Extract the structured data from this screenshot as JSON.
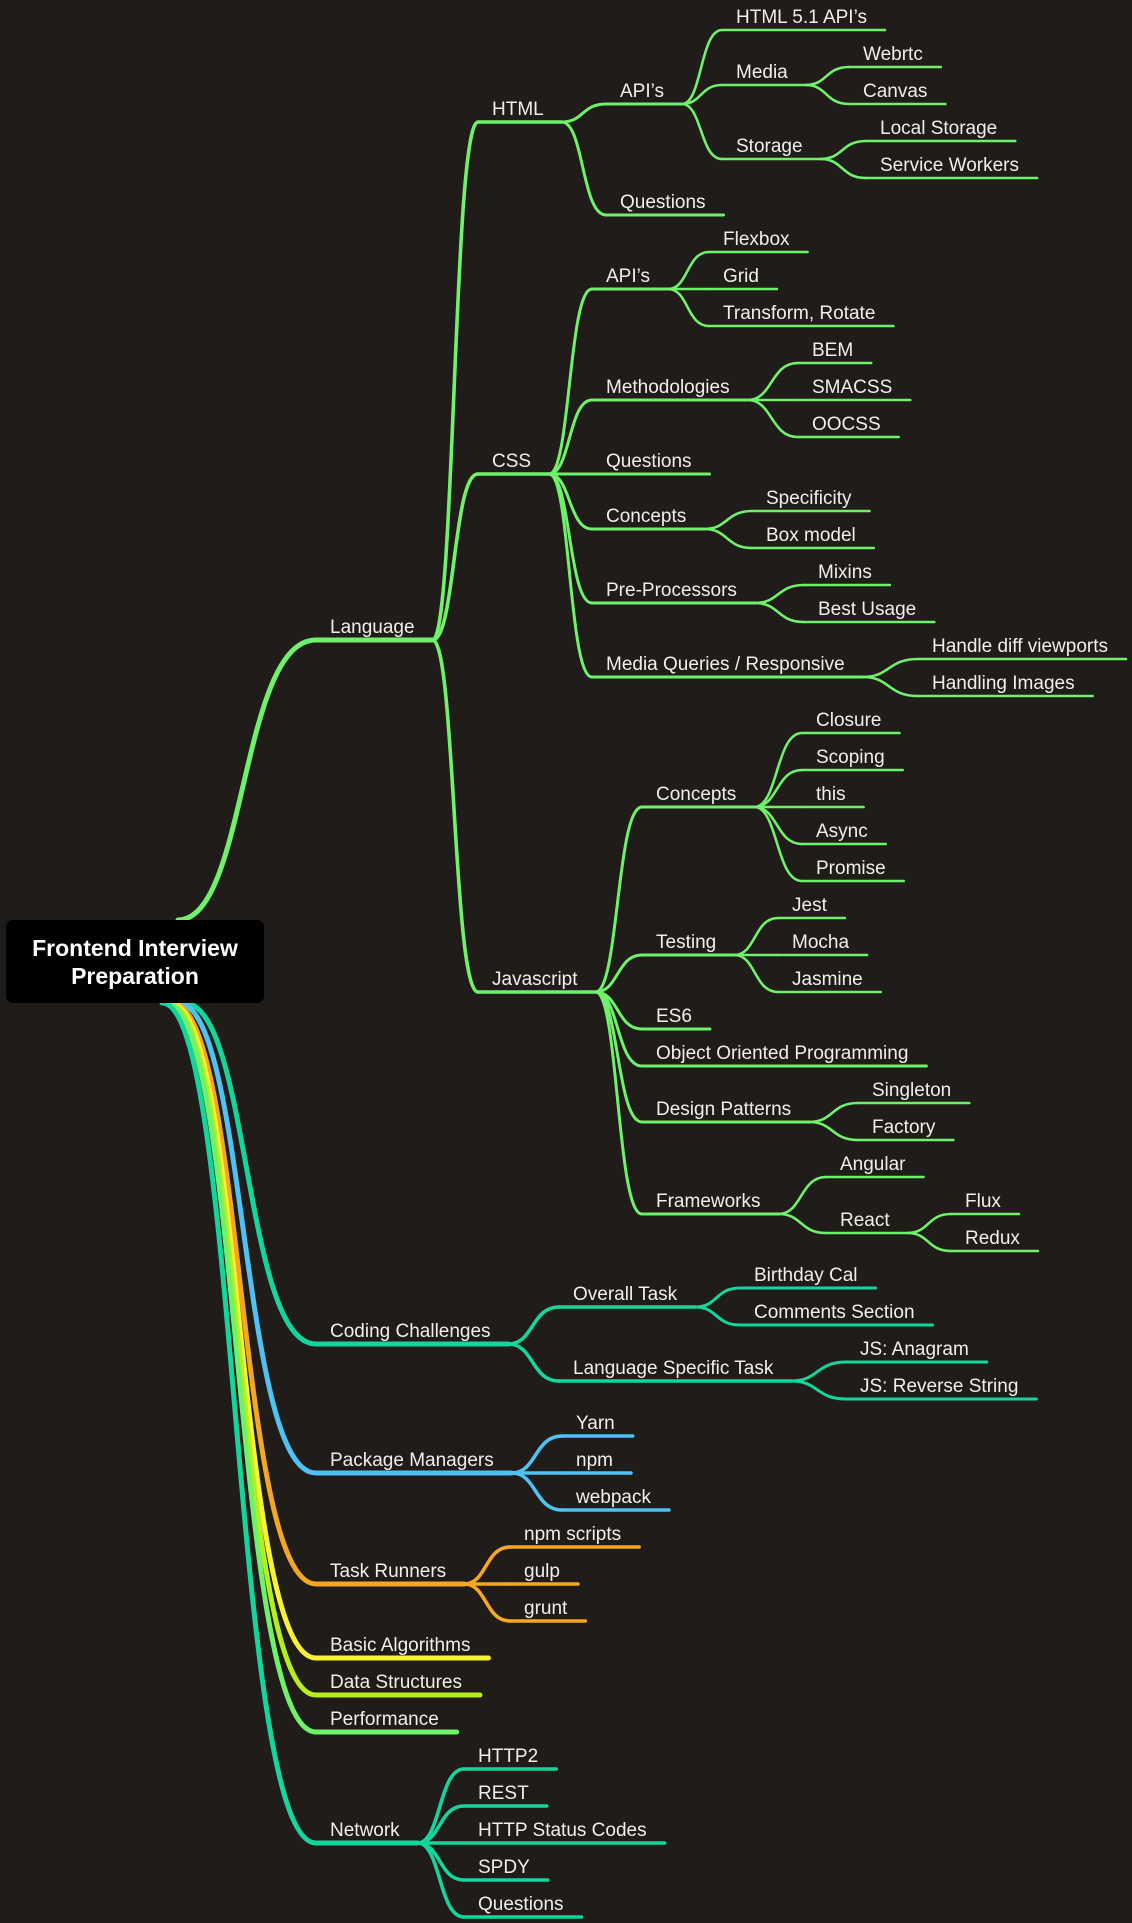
{
  "root": {
    "line1": "Frontend Interview",
    "line2": "Preparation"
  },
  "colors": {
    "green": "#6ff26a",
    "teal": "#14d69c",
    "blue": "#4fc1f2",
    "orange": "#f5a623",
    "yellow": "#f8f236",
    "lime": "#b5ee1e",
    "text": "#f2efe9",
    "background": "#1f1c1a"
  },
  "tree": [
    {
      "label": "Language",
      "color": "green",
      "children": [
        {
          "label": "HTML",
          "children": [
            {
              "label": "API’s",
              "children": [
                {
                  "label": "HTML 5.1 API’s"
                },
                {
                  "label": "Media",
                  "children": [
                    {
                      "label": "Webrtc"
                    },
                    {
                      "label": "Canvas"
                    }
                  ]
                },
                {
                  "label": "Storage",
                  "children": [
                    {
                      "label": "Local Storage"
                    },
                    {
                      "label": "Service Workers"
                    }
                  ]
                }
              ]
            },
            {
              "label": "Questions"
            }
          ]
        },
        {
          "label": "CSS",
          "children": [
            {
              "label": "API’s",
              "children": [
                {
                  "label": "Flexbox"
                },
                {
                  "label": "Grid"
                },
                {
                  "label": "Transform, Rotate"
                }
              ]
            },
            {
              "label": "Methodologies",
              "children": [
                {
                  "label": "BEM"
                },
                {
                  "label": "SMACSS"
                },
                {
                  "label": "OOCSS"
                }
              ]
            },
            {
              "label": "Questions"
            },
            {
              "label": "Concepts",
              "children": [
                {
                  "label": "Specificity"
                },
                {
                  "label": "Box model"
                }
              ]
            },
            {
              "label": "Pre-Processors",
              "children": [
                {
                  "label": "Mixins"
                },
                {
                  "label": "Best Usage"
                }
              ]
            },
            {
              "label": "Media Queries / Responsive",
              "children": [
                {
                  "label": "Handle diff viewports"
                },
                {
                  "label": "Handling Images"
                }
              ]
            }
          ]
        },
        {
          "label": "Javascript",
          "children": [
            {
              "label": "Concepts",
              "children": [
                {
                  "label": "Closure"
                },
                {
                  "label": "Scoping"
                },
                {
                  "label": "this"
                },
                {
                  "label": "Async"
                },
                {
                  "label": "Promise"
                }
              ]
            },
            {
              "label": "Testing",
              "children": [
                {
                  "label": "Jest"
                },
                {
                  "label": "Mocha"
                },
                {
                  "label": "Jasmine"
                }
              ]
            },
            {
              "label": "ES6"
            },
            {
              "label": "Object Oriented Programming"
            },
            {
              "label": "Design Patterns",
              "children": [
                {
                  "label": "Singleton"
                },
                {
                  "label": "Factory"
                }
              ]
            },
            {
              "label": "Frameworks",
              "children": [
                {
                  "label": "Angular"
                },
                {
                  "label": "React",
                  "children": [
                    {
                      "label": "Flux"
                    },
                    {
                      "label": "Redux"
                    }
                  ]
                }
              ]
            }
          ]
        }
      ]
    },
    {
      "label": "Coding Challenges",
      "color": "teal",
      "children": [
        {
          "label": "Overall Task",
          "children": [
            {
              "label": "Birthday Cal"
            },
            {
              "label": "Comments Section"
            }
          ]
        },
        {
          "label": "Language Specific Task",
          "children": [
            {
              "label": "JS: Anagram"
            },
            {
              "label": "JS: Reverse String"
            }
          ]
        }
      ]
    },
    {
      "label": "Package Managers",
      "color": "blue",
      "children": [
        {
          "label": "Yarn"
        },
        {
          "label": "npm"
        },
        {
          "label": "webpack"
        }
      ]
    },
    {
      "label": "Task Runners",
      "color": "orange",
      "children": [
        {
          "label": "npm scripts"
        },
        {
          "label": "gulp"
        },
        {
          "label": "grunt"
        }
      ]
    },
    {
      "label": "Basic Algorithms",
      "color": "yellow"
    },
    {
      "label": "Data Structures",
      "color": "lime"
    },
    {
      "label": "Performance",
      "color": "green"
    },
    {
      "label": "Network",
      "color": "teal",
      "children": [
        {
          "label": "HTTP2"
        },
        {
          "label": "REST"
        },
        {
          "label": "HTTP Status Codes"
        },
        {
          "label": "SPDY"
        },
        {
          "label": "Questions"
        }
      ]
    }
  ]
}
